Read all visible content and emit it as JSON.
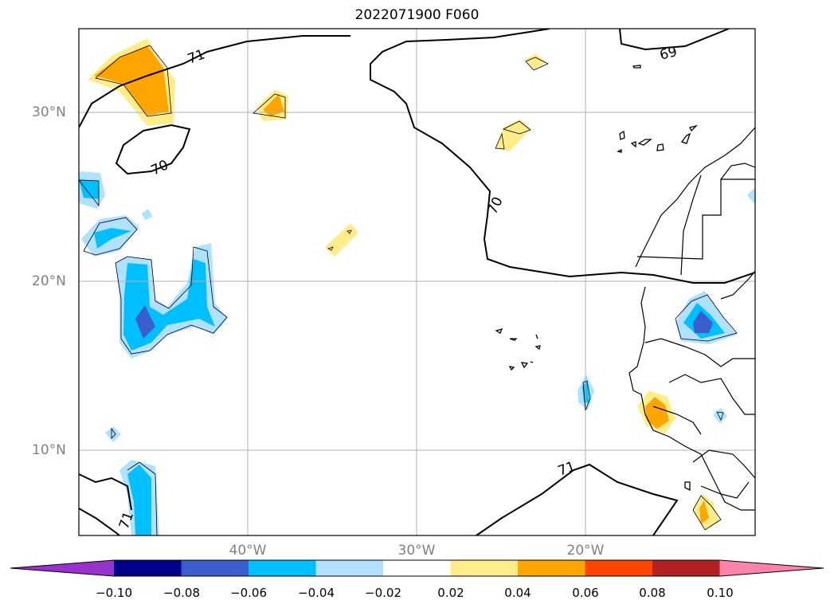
{
  "title": "2022071900 F060",
  "map": {
    "lat_labels": [
      "30°N",
      "20°N",
      "10°N"
    ],
    "lon_labels": [
      "40°W",
      "30°W",
      "20°W"
    ],
    "contour_labels": [
      "71",
      "70",
      "70",
      "69",
      "71",
      "71"
    ]
  },
  "colorbar": {
    "ticks": [
      "−0.10",
      "−0.08",
      "−0.06",
      "−0.04",
      "−0.02",
      "0.02",
      "0.04",
      "0.06",
      "0.08",
      "0.10"
    ],
    "colors": [
      "#9932cc",
      "#00008b",
      "#3a5fcd",
      "#00bfff",
      "#b0e2ff",
      "#ffffff",
      "#ffec8b",
      "#ffa500",
      "#ff4500",
      "#b22222",
      "#ff82ab"
    ]
  }
}
